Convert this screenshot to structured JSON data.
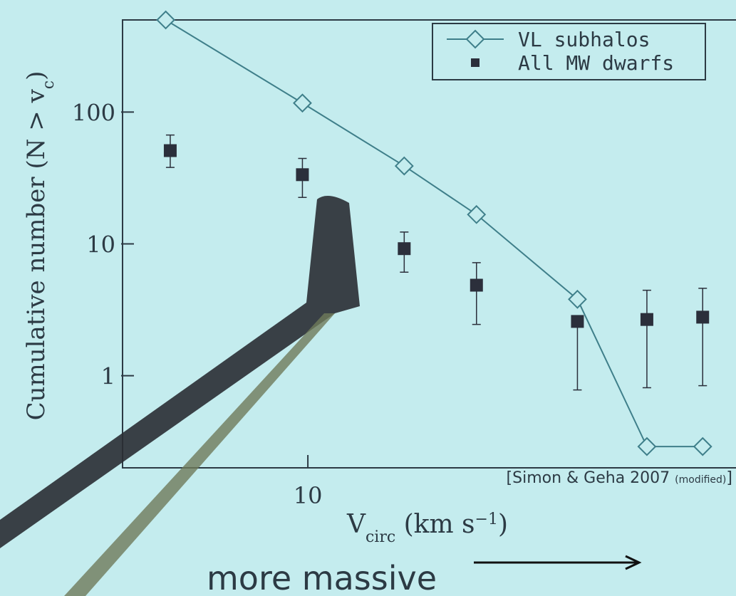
{
  "chart_data": {
    "type": "scatter",
    "x_label": [
      "V",
      "circ",
      " (km s",
      "−1",
      ")"
    ],
    "y_label": [
      "Cumulative number (N > v",
      "c",
      ")"
    ],
    "source": [
      "[Simon & Geha 2007 ",
      "(modified)",
      "]"
    ],
    "annotation": "more massive",
    "xscale": "log",
    "yscale": "log",
    "xlim": [
      5,
      49
    ],
    "ylim": [
      0.2,
      500
    ],
    "xticks": [
      10
    ],
    "yticks": [
      1,
      10,
      100
    ],
    "legend": "upper right",
    "series": [
      {
        "name": "VL subhalos",
        "color": "#3f7f8a",
        "marker": "diamond",
        "line": true,
        "x": [
          5.9,
          9.8,
          14.3,
          18.7,
          27.2,
          35.2,
          43.3
        ],
        "values": [
          500,
          117,
          39,
          16.7,
          3.8,
          0.29,
          0.29
        ]
      },
      {
        "name": "All MW dwarfs",
        "color": "#2b2f3b",
        "marker": "square",
        "line": false,
        "x": [
          6.0,
          9.8,
          14.3,
          18.7,
          27.2,
          35.2,
          43.3
        ],
        "values": [
          51,
          33.5,
          9.2,
          4.86,
          2.58,
          2.67,
          2.78
        ],
        "lower": [
          38,
          22.5,
          6.1,
          2.45,
          0.78,
          0.81,
          0.84
        ],
        "upper": [
          67,
          44.5,
          12.3,
          7.2,
          2.7,
          4.45,
          4.6
        ]
      }
    ]
  }
}
